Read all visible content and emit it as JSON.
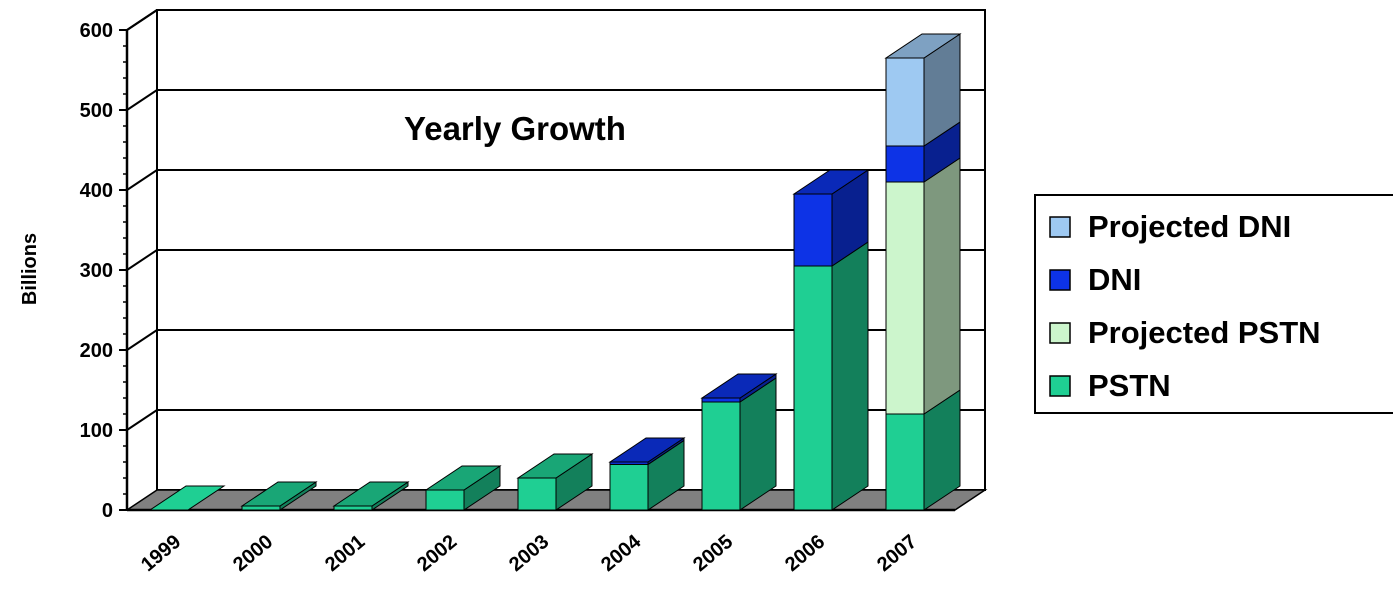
{
  "chart_data": {
    "type": "bar",
    "stacked": true,
    "three_d": true,
    "title": "Yearly Growth",
    "ylabel": "Billions",
    "xlabel": "",
    "ylim": [
      0,
      600
    ],
    "yticks": [
      0,
      100,
      200,
      300,
      400,
      500,
      600
    ],
    "categories": [
      "1999",
      "2000",
      "2001",
      "2002",
      "2003",
      "2004",
      "2005",
      "2006",
      "2007"
    ],
    "series": [
      {
        "name": "PSTN",
        "color": "#1fcf93",
        "values": [
          0,
          5,
          5,
          25,
          40,
          57,
          135,
          305,
          120
        ]
      },
      {
        "name": "Projected PSTN",
        "color": "#ccf5cc",
        "values": [
          0,
          0,
          0,
          0,
          0,
          0,
          0,
          0,
          290
        ]
      },
      {
        "name": "DNI",
        "color": "#0d33e6",
        "values": [
          0,
          0,
          0,
          0,
          0,
          3,
          5,
          90,
          45
        ]
      },
      {
        "name": "Projected DNI",
        "color": "#9ec9f2",
        "values": [
          0,
          0,
          0,
          0,
          0,
          0,
          0,
          0,
          110
        ]
      }
    ],
    "legend": {
      "position": "right",
      "order": [
        "Projected DNI",
        "DNI",
        "Projected PSTN",
        "PSTN"
      ]
    },
    "grid": true,
    "colors": {
      "floor": "#808080",
      "gridline": "#000000",
      "frame": "#000000"
    }
  }
}
